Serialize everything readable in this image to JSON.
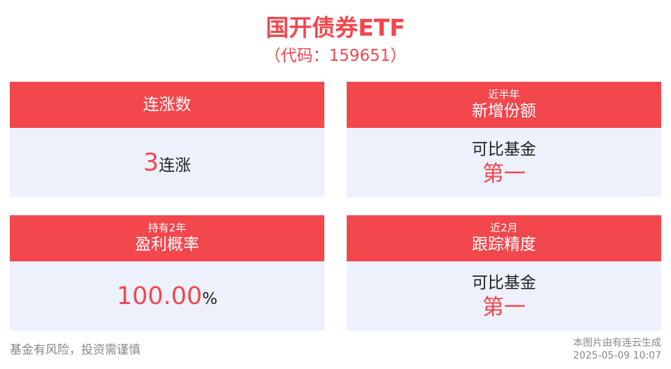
{
  "header": {
    "title": "国开债券ETF",
    "subtitle": "（代码：159651）"
  },
  "cards": [
    {
      "label": "连涨数",
      "value_number": "3",
      "value_unit": "连涨"
    },
    {
      "period": "近半年",
      "label": "新增份额",
      "rank_label": "可比基金",
      "rank_value": "第一"
    },
    {
      "period": "持有2年",
      "label": "盈利概率",
      "value_number": "100.00",
      "value_unit": "%"
    },
    {
      "period": "近2月",
      "label": "跟踪精度",
      "rank_label": "可比基金",
      "rank_value": "第一"
    }
  ],
  "footer": {
    "disclaimer": "基金有风险，投资需谨慎",
    "generated_by": "本图片由有连云生成",
    "timestamp": "2025-05-09 10:07"
  },
  "colors": {
    "accent": "#f2474d",
    "card_body_bg": "#edf1fb",
    "text_dark": "#222222",
    "text_muted": "#888888"
  }
}
